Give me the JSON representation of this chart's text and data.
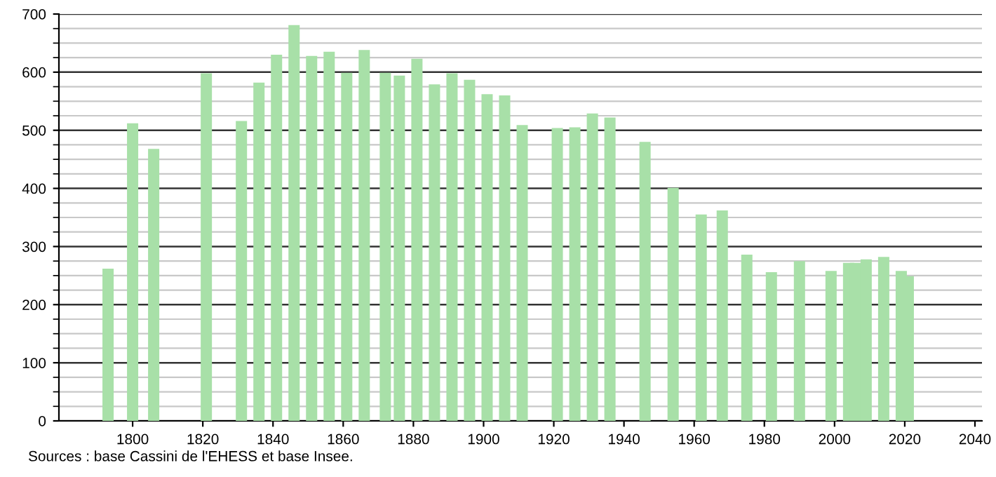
{
  "chart_data": {
    "type": "bar",
    "x": [
      1793,
      1800,
      1806,
      1821,
      1831,
      1836,
      1841,
      1846,
      1851,
      1856,
      1861,
      1866,
      1872,
      1876,
      1881,
      1886,
      1891,
      1896,
      1901,
      1906,
      1911,
      1921,
      1926,
      1931,
      1936,
      1946,
      1954,
      1962,
      1968,
      1975,
      1982,
      1990,
      1999,
      2004,
      2006,
      2009,
      2014,
      2019,
      2021
    ],
    "values": [
      262,
      512,
      468,
      598,
      516,
      582,
      630,
      681,
      628,
      635,
      599,
      638,
      599,
      594,
      623,
      579,
      598,
      587,
      562,
      560,
      509,
      504,
      505,
      529,
      522,
      480,
      401,
      355,
      362,
      286,
      256,
      275,
      258,
      272,
      272,
      278,
      282,
      258,
      249
    ],
    "color": "#a8e0a8",
    "xlim": [
      1779,
      2042
    ],
    "xticks": [
      1800,
      1820,
      1840,
      1860,
      1880,
      1900,
      1920,
      1940,
      1960,
      1980,
      2000,
      2020,
      2040
    ],
    "ylim": [
      0,
      700
    ],
    "yticks": [
      0,
      100,
      200,
      300,
      400,
      500,
      600,
      700
    ],
    "grid": "y",
    "annotations": [
      "Sources : base Cassini de l'EHESS et base Insee."
    ]
  }
}
